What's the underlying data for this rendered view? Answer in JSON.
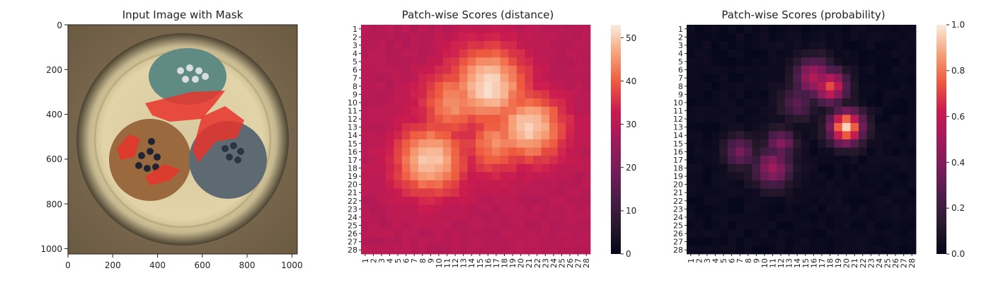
{
  "panels": [
    {
      "title": "Input Image with Mask",
      "x_ticks": [
        "0",
        "200",
        "400",
        "600",
        "800",
        "1000"
      ],
      "y_ticks": [
        "0",
        "200",
        "400",
        "600",
        "800",
        "1000"
      ]
    },
    {
      "title": "Patch-wise Scores (distance)",
      "colorbar_ticks": [
        "0",
        "10",
        "20",
        "30",
        "40",
        "50"
      ]
    },
    {
      "title": "Patch-wise Scores (probability)",
      "colorbar_ticks": [
        "0.0",
        "0.2",
        "0.4",
        "0.6",
        "0.8",
        "1.0"
      ]
    }
  ],
  "chart_data": [
    {
      "type": "image",
      "title": "Input Image with Mask",
      "xlim": [
        0,
        1024
      ],
      "ylim": [
        1024,
        0
      ],
      "x_ticks": [
        0,
        200,
        400,
        600,
        800,
        1000
      ],
      "y_ticks": [
        0,
        200,
        400,
        600,
        800,
        1000
      ]
    },
    {
      "type": "heatmap",
      "title": "Patch-wise Scores (distance)",
      "rows": [
        "1",
        "2",
        "3",
        "4",
        "5",
        "6",
        "7",
        "8",
        "9",
        "10",
        "11",
        "12",
        "13",
        "14",
        "15",
        "16",
        "17",
        "18",
        "19",
        "20",
        "21",
        "22",
        "23",
        "24",
        "25",
        "26",
        "27",
        "28"
      ],
      "cols": [
        "1",
        "2",
        "3",
        "4",
        "5",
        "6",
        "7",
        "8",
        "9",
        "10",
        "11",
        "12",
        "13",
        "14",
        "15",
        "16",
        "17",
        "18",
        "19",
        "20",
        "21",
        "22",
        "23",
        "24",
        "25",
        "26",
        "27",
        "28"
      ],
      "colorbar_range": [
        0,
        53
      ],
      "colormap": "rocket",
      "hotspots": [
        {
          "row": 8,
          "col": 16,
          "peak": 52,
          "spread": 3.2
        },
        {
          "row": 13,
          "col": 21,
          "peak": 51,
          "spread": 2.8
        },
        {
          "row": 17,
          "col": 9,
          "peak": 50,
          "spread": 2.9
        },
        {
          "row": 10,
          "col": 12,
          "peak": 45,
          "spread": 2.8
        },
        {
          "row": 15,
          "col": 17,
          "peak": 44,
          "spread": 2.5
        }
      ],
      "baseline": 30
    },
    {
      "type": "heatmap",
      "title": "Patch-wise Scores (probability)",
      "rows": [
        "1",
        "2",
        "3",
        "4",
        "5",
        "6",
        "7",
        "8",
        "9",
        "10",
        "11",
        "12",
        "13",
        "14",
        "15",
        "16",
        "17",
        "18",
        "19",
        "20",
        "21",
        "22",
        "23",
        "24",
        "25",
        "26",
        "27",
        "28"
      ],
      "cols": [
        "1",
        "2",
        "3",
        "4",
        "5",
        "6",
        "7",
        "8",
        "9",
        "10",
        "11",
        "12",
        "13",
        "14",
        "15",
        "16",
        "17",
        "18",
        "19",
        "20",
        "21",
        "22",
        "23",
        "24",
        "25",
        "26",
        "27",
        "28"
      ],
      "colorbar_range": [
        0,
        1
      ],
      "colormap": "rocket",
      "hotspots": [
        {
          "row": 13,
          "col": 20,
          "peak": 0.97,
          "spread": 1.4
        },
        {
          "row": 8,
          "col": 18,
          "peak": 0.72,
          "spread": 1.4
        },
        {
          "row": 7,
          "col": 16,
          "peak": 0.55,
          "spread": 1.6
        },
        {
          "row": 18,
          "col": 11,
          "peak": 0.48,
          "spread": 1.6
        },
        {
          "row": 16,
          "col": 7,
          "peak": 0.36,
          "spread": 1.3
        },
        {
          "row": 15,
          "col": 12,
          "peak": 0.42,
          "spread": 1.2
        },
        {
          "row": 10,
          "col": 14,
          "peak": 0.3,
          "spread": 1.5
        }
      ],
      "baseline": 0.03
    }
  ]
}
